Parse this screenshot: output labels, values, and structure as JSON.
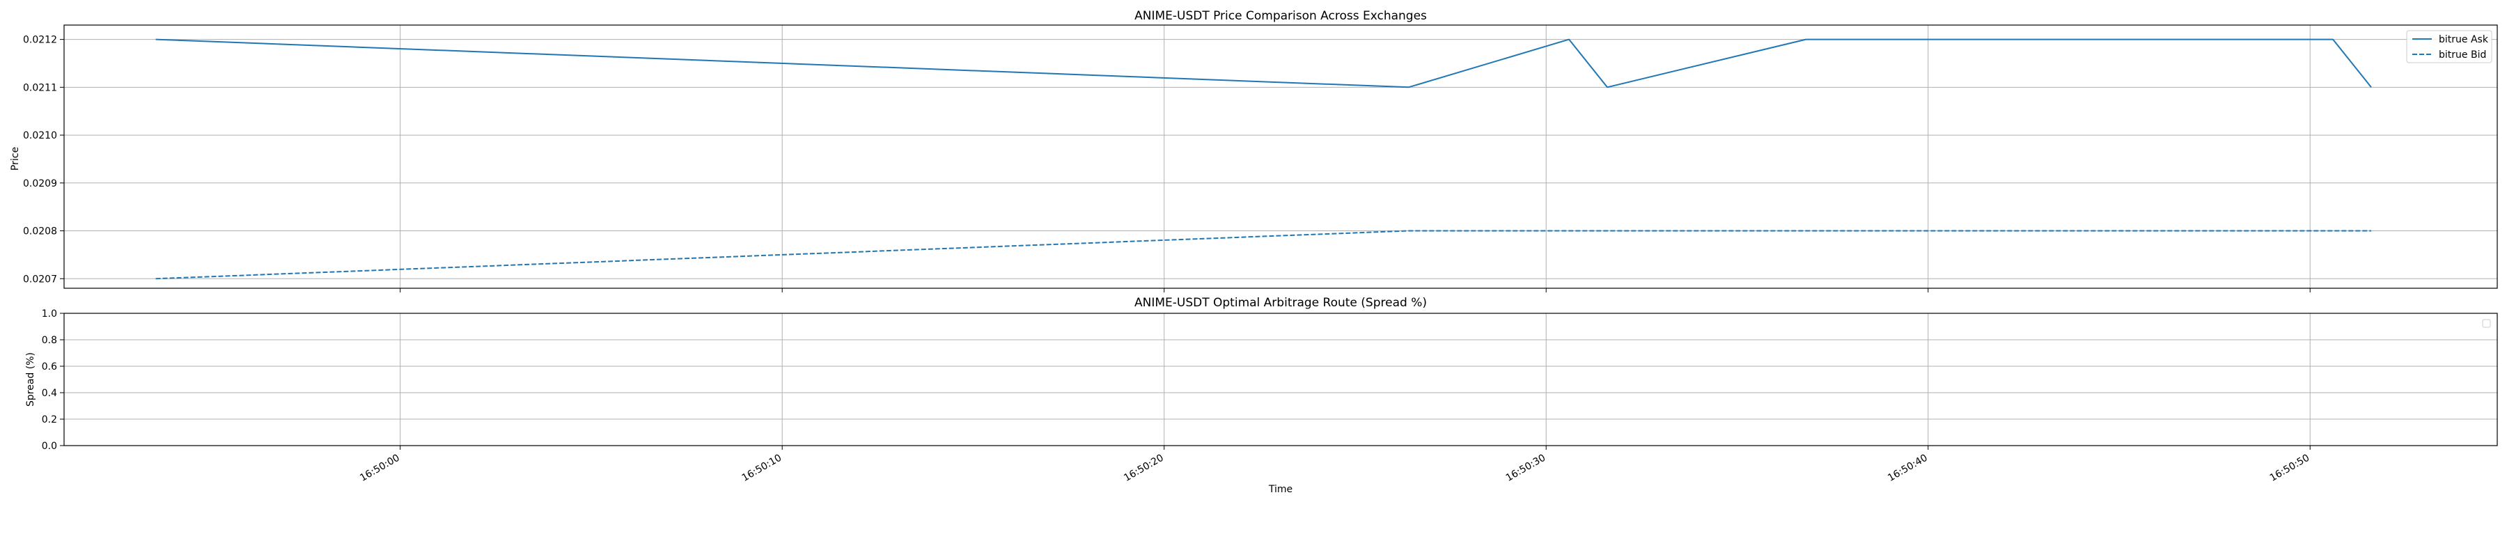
{
  "chart_data": [
    {
      "type": "line",
      "title": "ANIME-USDT Price Comparison Across Exchanges",
      "xlabel": "",
      "ylabel": "Price",
      "ylim": [
        0.02068,
        0.02123
      ],
      "yticks": [
        0.0207,
        0.0208,
        0.0209,
        0.021,
        0.0211,
        0.0212
      ],
      "ytick_labels": [
        "0.0207",
        "0.0208",
        "0.0209",
        "0.0210",
        "0.0211",
        "0.0212"
      ],
      "xlim": [
        "16:49:51.2",
        "16:50:54.9"
      ],
      "xticks": [
        "16:50:00",
        "16:50:10",
        "16:50:20",
        "16:50:30",
        "16:50:40",
        "16:50:50"
      ],
      "grid": true,
      "legend": "top-right",
      "series": [
        {
          "name": "bitrue Ask",
          "color": "#1f77b4",
          "style": "solid",
          "points": [
            {
              "x": "16:49:53.6",
              "y": 0.0212
            },
            {
              "x": "16:50:26.4",
              "y": 0.0211
            },
            {
              "x": "16:50:30.6",
              "y": 0.0212
            },
            {
              "x": "16:50:31.6",
              "y": 0.0211
            },
            {
              "x": "16:50:36.8",
              "y": 0.0212
            },
            {
              "x": "16:50:50.6",
              "y": 0.0212
            },
            {
              "x": "16:50:51.6",
              "y": 0.0211
            }
          ]
        },
        {
          "name": "bitrue Bid",
          "color": "#1f77b4",
          "style": "dashed",
          "points": [
            {
              "x": "16:49:53.6",
              "y": 0.0207
            },
            {
              "x": "16:50:26.4",
              "y": 0.0208
            },
            {
              "x": "16:50:51.6",
              "y": 0.0208
            }
          ]
        }
      ]
    },
    {
      "type": "line",
      "title": "ANIME-USDT Optimal Arbitrage Route (Spread %)",
      "xlabel": "Time",
      "ylabel": "Spread (%)",
      "ylim": [
        0.0,
        1.0
      ],
      "yticks": [
        0.0,
        0.2,
        0.4,
        0.6,
        0.8,
        1.0
      ],
      "ytick_labels": [
        "0.0",
        "0.2",
        "0.4",
        "0.6",
        "0.8",
        "1.0"
      ],
      "xlim": [
        "16:49:51.2",
        "16:50:54.9"
      ],
      "xticks": [
        "16:50:00",
        "16:50:10",
        "16:50:20",
        "16:50:30",
        "16:50:40",
        "16:50:50"
      ],
      "grid": true,
      "legend": "top-right",
      "series": []
    }
  ]
}
